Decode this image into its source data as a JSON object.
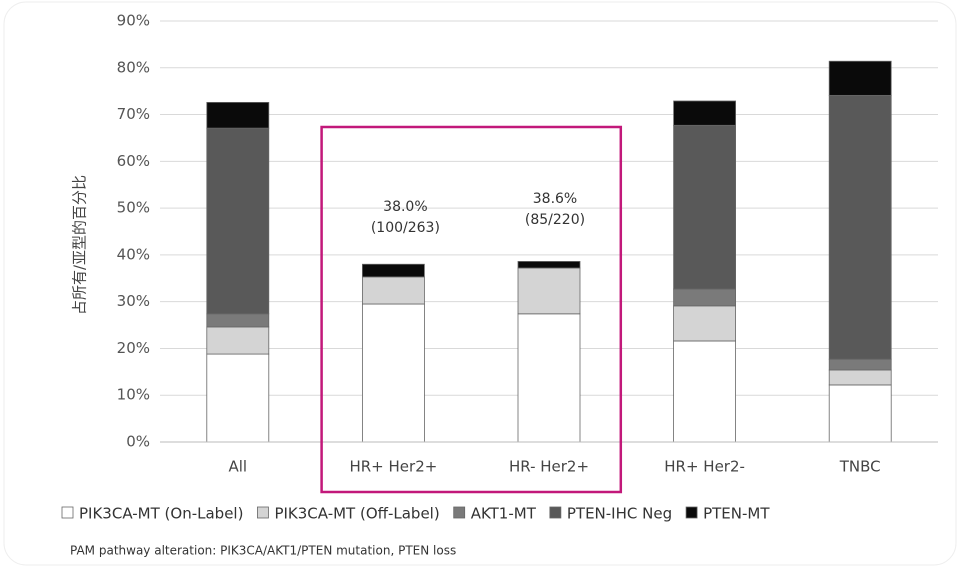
{
  "chart_data": {
    "type": "stacked-bar",
    "y_label": "占所有/亚型的百分比",
    "categories": [
      "All",
      "HR+ Her2+",
      "HR- Her2+",
      "HR+ Her2-",
      "TNBC"
    ],
    "series": [
      {
        "name": "PIK3CA-MT (On-Label)",
        "color": "#ffffff",
        "values": [
          18.8,
          29.5,
          27.4,
          21.6,
          12.2
        ]
      },
      {
        "name": "PIK3CA-MT (Off-Label)",
        "color": "#d4d4d4",
        "values": [
          5.8,
          5.8,
          9.8,
          7.5,
          3.2
        ]
      },
      {
        "name": "AKT1-MT",
        "color": "#7a7a7a",
        "values": [
          2.8,
          0,
          0,
          3.6,
          2.3
        ]
      },
      {
        "name": "PTEN-IHC Neg",
        "color": "#595959",
        "values": [
          39.7,
          0,
          0,
          35.0,
          56.4
        ]
      },
      {
        "name": "PTEN-MT",
        "color": "#0a0a0a",
        "values": [
          5.5,
          2.7,
          1.4,
          5.2,
          7.3
        ]
      }
    ],
    "ylim": [
      0,
      90
    ],
    "yticks": [
      {
        "value": 0,
        "label": "0%"
      },
      {
        "value": 10,
        "label": "10%"
      },
      {
        "value": 20,
        "label": "20%"
      },
      {
        "value": 30,
        "label": "30%"
      },
      {
        "value": 40,
        "label": "40%"
      },
      {
        "value": 50,
        "label": "50%"
      },
      {
        "value": 60,
        "label": "60%"
      },
      {
        "value": 70,
        "label": "70%"
      },
      {
        "value": 80,
        "label": "80%"
      },
      {
        "value": 90,
        "label": "90%"
      }
    ],
    "grid": true,
    "annotations": [
      {
        "category": 1,
        "lines": [
          "38.0%",
          "(100/263)"
        ]
      },
      {
        "category": 2,
        "lines": [
          "38.6%",
          "(85/220)"
        ]
      }
    ],
    "highlight_color": "#c2187a",
    "footnote": "PAM pathway alteration: PIK3CA/AKT1/PTEN mutation, PTEN loss"
  }
}
